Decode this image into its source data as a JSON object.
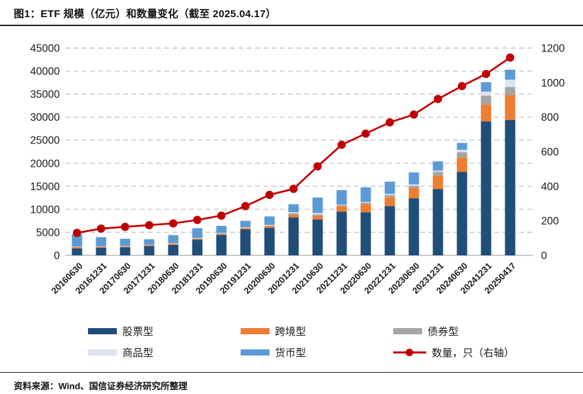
{
  "page": {
    "title": "图1：ETF 规模（亿元）和数量变化（截至 2025.04.17）",
    "source": "资料来源：Wind、国信证券经济研究所整理"
  },
  "chart_data": {
    "type": "bar",
    "subtype": "stacked-bars-with-line-on-secondary-axis",
    "title": "图1：ETF 规模（亿元）和数量变化（截至 2025.04.17）",
    "categories": [
      "20160630",
      "20161231",
      "20170630",
      "20171231",
      "20180630",
      "20181231",
      "20190630",
      "20191231",
      "20200630",
      "20201231",
      "20210630",
      "20211231",
      "20220630",
      "20221231",
      "20230630",
      "20231231",
      "20240630",
      "20241231",
      "20250417"
    ],
    "series": [
      {
        "name": "股票型",
        "key": "equity",
        "color": "#1F4E79",
        "values": [
          1500,
          1650,
          1750,
          2000,
          2250,
          3400,
          4400,
          5650,
          5950,
          8250,
          7800,
          9500,
          9350,
          10700,
          12400,
          14400,
          18100,
          29100,
          29400
        ]
      },
      {
        "name": "跨境型",
        "key": "cross-border",
        "color": "#ED7D31",
        "values": [
          300,
          250,
          200,
          200,
          250,
          200,
          250,
          250,
          400,
          600,
          800,
          1200,
          1800,
          1900,
          2200,
          2900,
          3100,
          3650,
          5400
        ]
      },
      {
        "name": "债券型",
        "key": "bond",
        "color": "#A5A5A5",
        "values": [
          50,
          30,
          30,
          30,
          50,
          70,
          100,
          100,
          100,
          250,
          300,
          200,
          300,
          500,
          500,
          800,
          1200,
          1900,
          1750
        ]
      },
      {
        "name": "商品型",
        "key": "commodity",
        "color": "#DBE3F1",
        "values": [
          50,
          50,
          70,
          70,
          80,
          100,
          100,
          100,
          150,
          250,
          300,
          100,
          150,
          250,
          300,
          300,
          500,
          900,
          1600
        ]
      },
      {
        "name": "货币型",
        "key": "money",
        "color": "#5B9BD5",
        "values": [
          2700,
          1970,
          1550,
          1200,
          1770,
          2130,
          1550,
          1400,
          1850,
          1750,
          3350,
          3150,
          3150,
          2650,
          2600,
          2000,
          1500,
          2050,
          2150
        ]
      }
    ],
    "line_series": {
      "name": "数量，只（右轴）",
      "key": "count",
      "color": "#C00000",
      "axis": "right",
      "values": [
        130,
        155,
        165,
        175,
        185,
        205,
        230,
        285,
        350,
        385,
        515,
        640,
        705,
        770,
        815,
        905,
        980,
        1050,
        1145
      ]
    },
    "left_axis": {
      "min": 0,
      "max": 45000,
      "step": 5000,
      "ticks": [
        "0",
        "5000",
        "10000",
        "15000",
        "20000",
        "25000",
        "30000",
        "35000",
        "40000",
        "45000"
      ]
    },
    "right_axis": {
      "min": 0,
      "max": 1200,
      "step": 200,
      "ticks": [
        "0",
        "200",
        "400",
        "600",
        "800",
        "1000",
        "1200"
      ]
    },
    "grid": "horizontal dashed",
    "legend_position": "bottom",
    "xlabel": "",
    "ylabel": ""
  }
}
